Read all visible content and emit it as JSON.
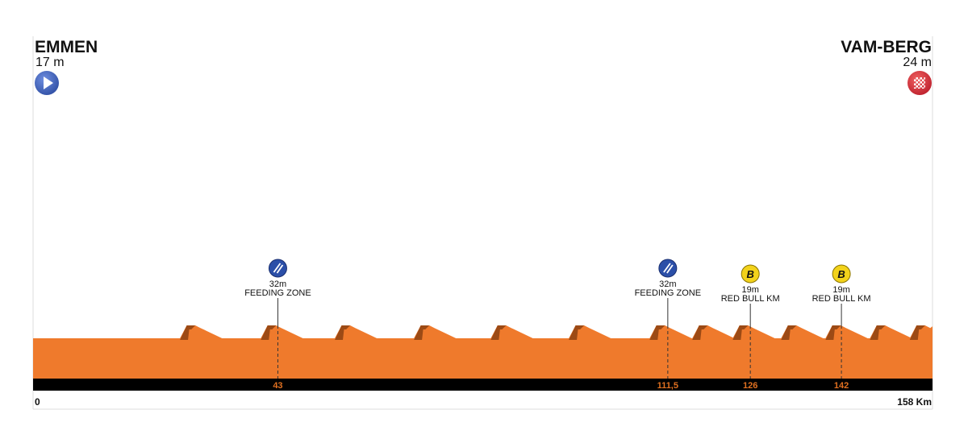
{
  "chart_data": {
    "type": "area",
    "start": {
      "name": "EMMEN",
      "elevation": "17 m"
    },
    "finish": {
      "name": "VAM-BERG",
      "elevation": "24 m"
    },
    "xlim": [
      0,
      158
    ],
    "x_start_label": "0",
    "x_end_label": "158 Km",
    "base_elevation_m": 17,
    "hill_top_elevation_m": 32,
    "hills_km": [
      28.2,
      42.4,
      55.4,
      69.3,
      82.8,
      96.5,
      110.7,
      118.2,
      125.3,
      133.8,
      141.6,
      149.4,
      156.4
    ],
    "markers": [
      {
        "km": 43,
        "km_label": "43",
        "elevation": "32m",
        "label": "FEEDING ZONE",
        "icon": "feeding-zone-icon",
        "color": "#2b4fa8"
      },
      {
        "km": 111.5,
        "km_label": "111,5",
        "elevation": "32m",
        "label": "FEEDING ZONE",
        "icon": "feeding-zone-icon",
        "color": "#2b4fa8"
      },
      {
        "km": 126,
        "km_label": "126",
        "elevation": "19m",
        "label": "RED BULL KM",
        "icon": "bonus-b-icon",
        "color": "#f2d21b"
      },
      {
        "km": 142,
        "km_label": "142",
        "elevation": "19m",
        "label": "RED BULL KM",
        "icon": "bonus-b-icon",
        "color": "#f2d21b"
      }
    ],
    "colors": {
      "terrain": "#ef7a2c",
      "hill_face": "#9c4a15",
      "axis_bar": "#000000",
      "km_label": "#e07020",
      "start_icon": "#2b4fa8",
      "finish_icon": "#d0202a"
    }
  }
}
